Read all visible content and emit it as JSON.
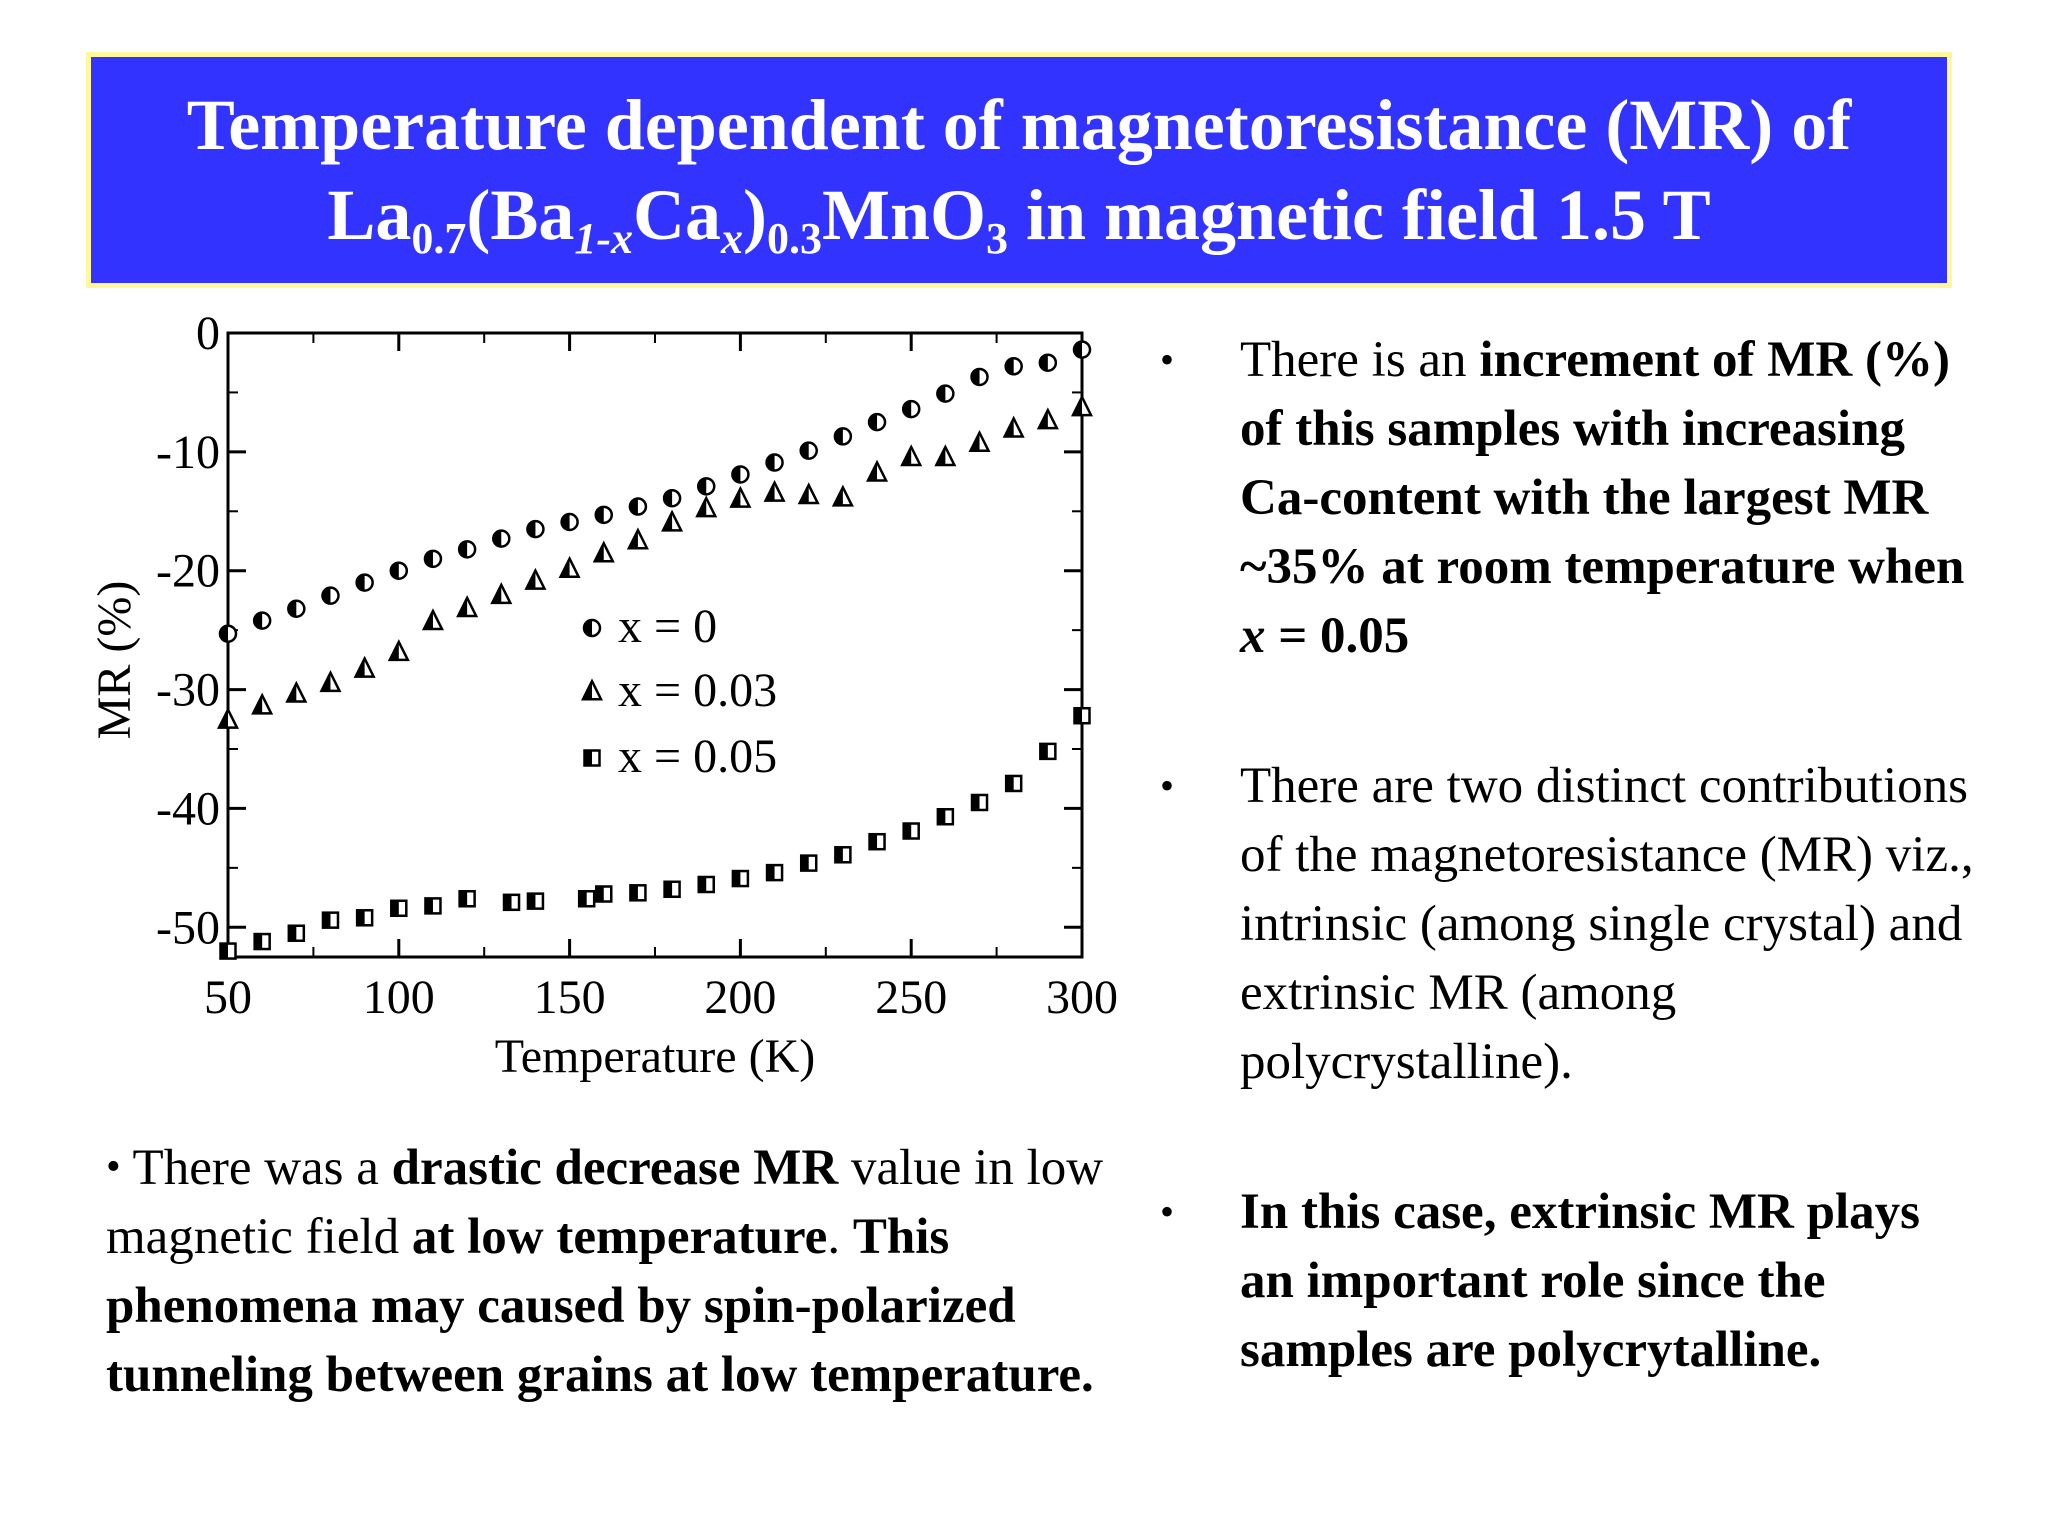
{
  "colors": {
    "title_bg": "#3333ff",
    "title_border": "#fff89a",
    "title_text": "#ffffff"
  },
  "title": {
    "line1": "Temperature dependent of magnetoresistance (MR) of",
    "formula": {
      "la": "La",
      "la_sub": "0.7",
      "ba": "(Ba",
      "ba_sub": "1-x",
      "ca": "Ca",
      "ca_sub": "x",
      "close": ")",
      "close_sub": "0.3",
      "mno": "MnO",
      "mno_sub": "3"
    },
    "line2_rest": " in magnetic field 1.5 T"
  },
  "chart_data": {
    "type": "scatter",
    "xlabel": "Temperature (K)",
    "ylabel": "MR (%)",
    "xlim": [
      50,
      300
    ],
    "ylim": [
      -52.5,
      0
    ],
    "x_ticks": [
      50,
      100,
      150,
      200,
      250,
      300
    ],
    "y_ticks": [
      0,
      -10,
      -20,
      -30,
      -40,
      -50
    ],
    "legend_position": "center",
    "series": [
      {
        "name": "x = 0",
        "marker": "half-filled-circle",
        "x": [
          50,
          60,
          70,
          80,
          90,
          100,
          110,
          120,
          130,
          140,
          150,
          160,
          170,
          180,
          190,
          200,
          210,
          220,
          230,
          240,
          250,
          260,
          270,
          280,
          290,
          300
        ],
        "values": [
          -25.3,
          -24.2,
          -23.2,
          -22.1,
          -21.0,
          -20.0,
          -19.0,
          -18.2,
          -17.3,
          -16.5,
          -15.9,
          -15.3,
          -14.6,
          -13.9,
          -12.9,
          -11.9,
          -10.9,
          -9.9,
          -8.7,
          -7.5,
          -6.4,
          -5.1,
          -3.7,
          -2.8,
          -2.5,
          -1.4
        ]
      },
      {
        "name": "x = 0.03",
        "marker": "half-filled-triangle",
        "x": [
          50,
          60,
          70,
          80,
          90,
          100,
          110,
          120,
          130,
          140,
          150,
          160,
          170,
          180,
          190,
          200,
          210,
          220,
          230,
          240,
          250,
          260,
          270,
          280,
          290,
          300
        ],
        "values": [
          -32.6,
          -31.4,
          -30.4,
          -29.5,
          -28.3,
          -26.9,
          -24.3,
          -23.2,
          -22.1,
          -20.9,
          -19.9,
          -18.6,
          -17.5,
          -16.0,
          -14.8,
          -14.0,
          -13.5,
          -13.7,
          -13.9,
          -11.8,
          -10.5,
          -10.5,
          -9.3,
          -8.1,
          -7.4,
          -6.3
        ]
      },
      {
        "name": "x = 0.05",
        "marker": "half-filled-square",
        "x": [
          50,
          60,
          70,
          80,
          90,
          100,
          110,
          120,
          133,
          140,
          155,
          160,
          170,
          180,
          190,
          200,
          210,
          220,
          230,
          240,
          250,
          260,
          270,
          280,
          290,
          300
        ],
        "values": [
          -52.0,
          -51.2,
          -50.5,
          -49.4,
          -49.2,
          -48.4,
          -48.2,
          -47.6,
          -47.9,
          -47.8,
          -47.6,
          -47.2,
          -47.1,
          -46.8,
          -46.4,
          -45.9,
          -45.4,
          -44.6,
          -43.9,
          -42.8,
          -41.9,
          -40.7,
          -39.5,
          -37.9,
          -35.2,
          -32.2
        ]
      }
    ]
  },
  "bottom_left": {
    "bullet": "•",
    "t1": " There was a ",
    "b1": "drastic decrease MR",
    "t2": " value in low magnetic field ",
    "b2": "at low temperature",
    "t3": ". ",
    "b3": "This phenomena may caused by spin-polarized tunneling between grains at low temperature."
  },
  "right_bullets": {
    "bullet": "•",
    "item1": {
      "t1": "There is an ",
      "b1": "increment of MR (%) of this samples with increasing Ca-content with the largest MR ~35% at room temperature when ",
      "bi": "x",
      "b2": " = 0.05"
    },
    "item2": {
      "text": "There are two distinct contributions of the magnetoresistance (MR) viz., intrinsic (among single crystal) and extrinsic MR (among polycrystalline)."
    },
    "item3": {
      "b1": "In this case, extrinsic MR plays an important role since the samples are polycrytalline."
    }
  }
}
